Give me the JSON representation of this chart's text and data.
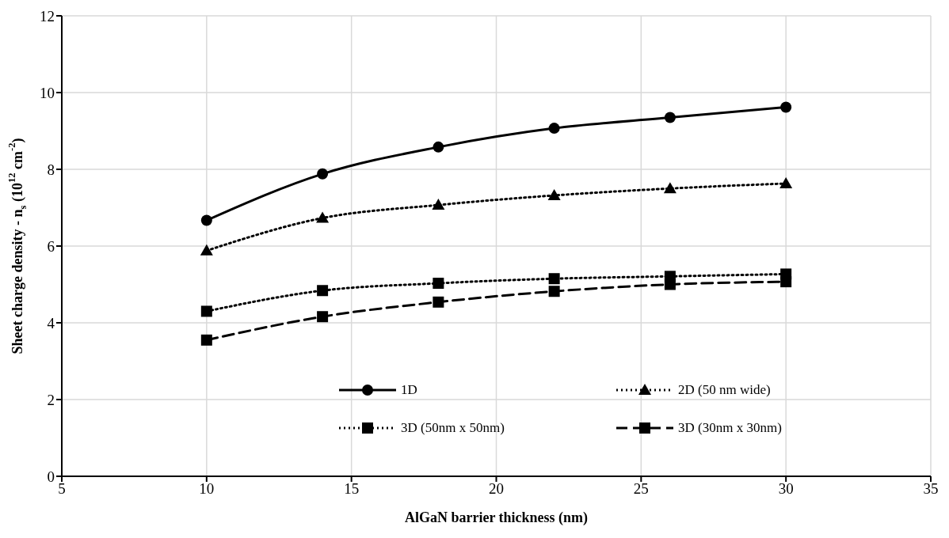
{
  "chart_data": {
    "type": "line",
    "xlabel": "AlGaN barrier thickness (nm)",
    "ylabel": "Sheet charge density - n$_{s}$ (10$^{12}$ cm$^{-2}$)",
    "x": [
      10,
      14,
      18,
      22,
      26,
      30
    ],
    "series": [
      {
        "name": "1D",
        "color": "#000000",
        "marker": "circle",
        "line_style": "solid",
        "values": [
          6.67,
          7.88,
          8.58,
          9.07,
          9.35,
          9.62
        ]
      },
      {
        "name": "2D (50 nm wide)",
        "color": "#000000",
        "marker": "triangle",
        "line_style": "dotted",
        "values": [
          5.88,
          6.73,
          7.07,
          7.32,
          7.5,
          7.63
        ]
      },
      {
        "name": "3D (50nm x 50nm)",
        "color": "#000000",
        "marker": "square",
        "line_style": "dotted",
        "values": [
          4.3,
          4.84,
          5.03,
          5.15,
          5.21,
          5.27
        ]
      },
      {
        "name": "3D (30nm x 30nm)",
        "color": "#000000",
        "marker": "square",
        "line_style": "dashed",
        "values": [
          3.55,
          4.16,
          4.54,
          4.82,
          5.0,
          5.07
        ]
      }
    ],
    "xlim": [
      5,
      35
    ],
    "xticks": [
      5,
      10,
      15,
      20,
      25,
      30,
      35
    ],
    "ylim": [
      0,
      12
    ],
    "yticks": [
      0,
      2,
      4,
      6,
      8,
      10,
      12
    ],
    "grid": true,
    "legend": "bottom"
  }
}
